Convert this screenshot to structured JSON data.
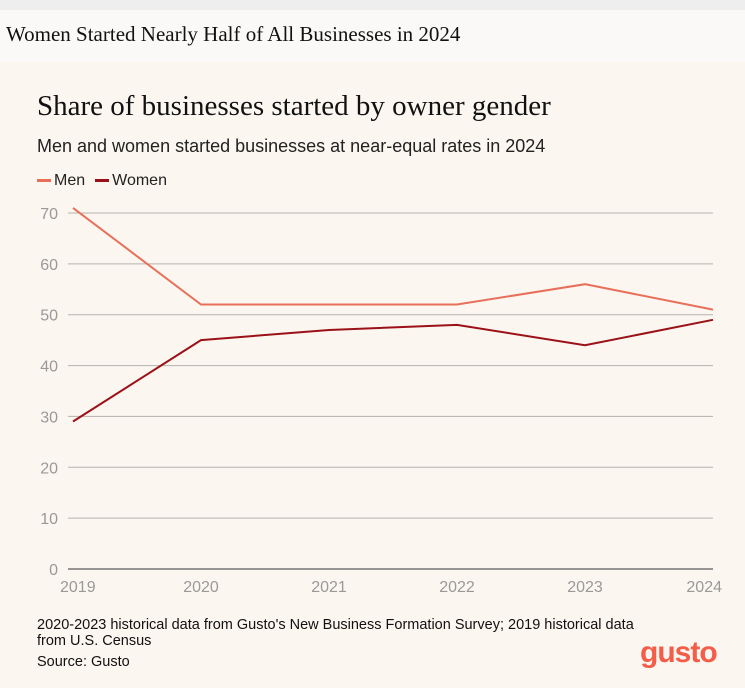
{
  "page": {
    "heading": "Women Started Nearly Half of All Businesses in 2024"
  },
  "chart_data": {
    "type": "line",
    "title": "Share of businesses started by owner gender",
    "subtitle": "Men and women started businesses at near-equal rates in 2024",
    "categories": [
      "2019",
      "2020",
      "2021",
      "2022",
      "2023",
      "2024"
    ],
    "series": [
      {
        "name": "Men",
        "color": "#e8705a",
        "values": [
          71,
          52,
          52,
          52,
          56,
          51
        ]
      },
      {
        "name": "Women",
        "color": "#9b1118",
        "values": [
          29,
          45,
          47,
          48,
          44,
          49
        ]
      }
    ],
    "yticks": [
      0,
      10,
      20,
      30,
      40,
      50,
      60,
      70
    ],
    "ylim": [
      0,
      70
    ],
    "grid": true,
    "legend_position": "top-left",
    "note": "2020-2023 historical data from Gusto's New Business Formation Survey; 2019 historical data from U.S. Census",
    "source": "Source: Gusto"
  },
  "logo": {
    "text": "gusto",
    "color": "#f45d48"
  }
}
